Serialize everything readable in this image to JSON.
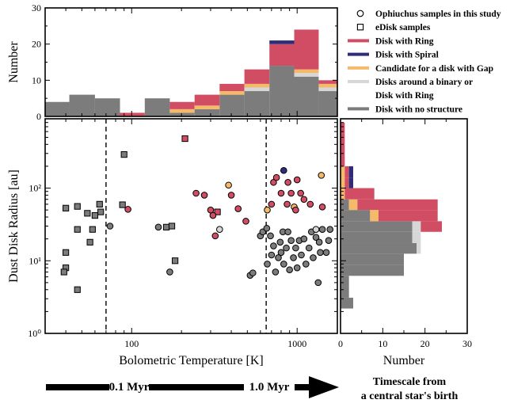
{
  "chart_data": [
    {
      "id": "top_hist",
      "type": "histogram",
      "ylabel": "Number",
      "ylim": [
        0,
        30
      ],
      "yticks": [
        0,
        10,
        20,
        30
      ],
      "xscale": "log",
      "xlim": [
        30,
        1750
      ],
      "stacking_order": [
        "Disk with no structure",
        "Disks around a binary or Disk with Ring",
        "Candidate for a disk with Gap",
        "Disk with Ring",
        "Disk with Spiral"
      ],
      "bins": [
        {
          "x0": 30,
          "x1": 42,
          "counts": [
            4,
            0,
            0,
            0,
            0
          ]
        },
        {
          "x0": 42,
          "x1": 60,
          "counts": [
            6,
            0,
            0,
            0,
            0
          ]
        },
        {
          "x0": 60,
          "x1": 85,
          "counts": [
            5,
            0,
            0,
            0,
            0
          ]
        },
        {
          "x0": 85,
          "x1": 120,
          "counts": [
            0,
            0,
            0,
            1,
            0
          ]
        },
        {
          "x0": 120,
          "x1": 170,
          "counts": [
            5,
            0,
            0,
            0,
            0
          ]
        },
        {
          "x0": 170,
          "x1": 240,
          "counts": [
            1,
            0,
            1,
            2,
            0
          ]
        },
        {
          "x0": 240,
          "x1": 340,
          "counts": [
            2,
            0,
            1,
            3,
            0
          ]
        },
        {
          "x0": 340,
          "x1": 480,
          "counts": [
            6,
            0,
            1,
            2,
            0
          ]
        },
        {
          "x0": 480,
          "x1": 680,
          "counts": [
            7,
            1,
            1,
            4,
            0
          ]
        },
        {
          "x0": 680,
          "x1": 960,
          "counts": [
            14,
            0,
            0,
            6,
            1
          ]
        },
        {
          "x0": 960,
          "x1": 1350,
          "counts": [
            11,
            1,
            1,
            11,
            0
          ]
        },
        {
          "x0": 1350,
          "x1": 1750,
          "counts": [
            7,
            1,
            1,
            1,
            0
          ]
        }
      ]
    },
    {
      "id": "scatter",
      "type": "scatter",
      "xlabel": "Bolometric Temperature [K]",
      "ylabel": "Dust Disk Radius [au]",
      "xscale": "log",
      "yscale": "log",
      "xlim": [
        30,
        1750
      ],
      "ylim": [
        1,
        900
      ],
      "xticks": [
        {
          "v": 100,
          "label": "100"
        },
        {
          "v": 1000,
          "label": "1000"
        }
      ],
      "yticks": [
        {
          "v": 1,
          "label": "10⁰"
        },
        {
          "v": 10,
          "label": "10¹"
        },
        {
          "v": 100,
          "label": "10²"
        }
      ],
      "vlines": [
        70,
        650
      ],
      "points": [
        {
          "x": 90,
          "y": 290,
          "m": "square",
          "c": "grey"
        },
        {
          "x": 210,
          "y": 480,
          "m": "square",
          "c": "ring"
        },
        {
          "x": 40,
          "y": 53,
          "m": "square",
          "c": "grey"
        },
        {
          "x": 47,
          "y": 56,
          "m": "square",
          "c": "grey"
        },
        {
          "x": 54,
          "y": 45,
          "m": "square",
          "c": "grey"
        },
        {
          "x": 60,
          "y": 42,
          "m": "square",
          "c": "grey"
        },
        {
          "x": 64,
          "y": 60,
          "m": "square",
          "c": "grey"
        },
        {
          "x": 65,
          "y": 47,
          "m": "square",
          "c": "grey"
        },
        {
          "x": 47,
          "y": 27,
          "m": "square",
          "c": "grey"
        },
        {
          "x": 58,
          "y": 27,
          "m": "square",
          "c": "grey"
        },
        {
          "x": 56,
          "y": 18,
          "m": "square",
          "c": "grey"
        },
        {
          "x": 88,
          "y": 59,
          "m": "square",
          "c": "grey"
        },
        {
          "x": 40,
          "y": 13,
          "m": "square",
          "c": "grey"
        },
        {
          "x": 40,
          "y": 8,
          "m": "square",
          "c": "grey"
        },
        {
          "x": 39,
          "y": 7,
          "m": "square",
          "c": "grey"
        },
        {
          "x": 47,
          "y": 4,
          "m": "square",
          "c": "grey"
        },
        {
          "x": 162,
          "y": 29,
          "m": "square",
          "c": "grey"
        },
        {
          "x": 175,
          "y": 30,
          "m": "square",
          "c": "grey"
        },
        {
          "x": 183,
          "y": 10,
          "m": "square",
          "c": "grey"
        },
        {
          "x": 330,
          "y": 47,
          "m": "square",
          "c": "ring"
        },
        {
          "x": 74,
          "y": 30,
          "m": "circle",
          "c": "grey"
        },
        {
          "x": 95,
          "y": 51,
          "m": "circle",
          "c": "ring"
        },
        {
          "x": 145,
          "y": 29,
          "m": "circle",
          "c": "grey"
        },
        {
          "x": 170,
          "y": 7,
          "m": "circle",
          "c": "grey"
        },
        {
          "x": 245,
          "y": 85,
          "m": "circle",
          "c": "ring"
        },
        {
          "x": 275,
          "y": 80,
          "m": "circle",
          "c": "ring"
        },
        {
          "x": 300,
          "y": 50,
          "m": "circle",
          "c": "ring"
        },
        {
          "x": 310,
          "y": 42,
          "m": "circle",
          "c": "ring"
        },
        {
          "x": 320,
          "y": 22,
          "m": "circle",
          "c": "ring"
        },
        {
          "x": 340,
          "y": 27,
          "m": "circle",
          "c": "binary"
        },
        {
          "x": 385,
          "y": 110,
          "m": "circle",
          "c": "gap"
        },
        {
          "x": 400,
          "y": 80,
          "m": "circle",
          "c": "ring"
        },
        {
          "x": 440,
          "y": 52,
          "m": "circle",
          "c": "ring"
        },
        {
          "x": 490,
          "y": 35,
          "m": "circle",
          "c": "ring"
        },
        {
          "x": 520,
          "y": 6.3,
          "m": "circle",
          "c": "grey"
        },
        {
          "x": 540,
          "y": 6.8,
          "m": "circle",
          "c": "grey"
        },
        {
          "x": 600,
          "y": 22,
          "m": "circle",
          "c": "grey"
        },
        {
          "x": 620,
          "y": 25,
          "m": "circle",
          "c": "grey"
        },
        {
          "x": 660,
          "y": 50,
          "m": "circle",
          "c": "gap"
        },
        {
          "x": 655,
          "y": 28,
          "m": "circle",
          "c": "grey"
        },
        {
          "x": 690,
          "y": 22,
          "m": "circle",
          "c": "grey"
        },
        {
          "x": 700,
          "y": 60,
          "m": "circle",
          "c": "ring"
        },
        {
          "x": 720,
          "y": 120,
          "m": "circle",
          "c": "ring"
        },
        {
          "x": 750,
          "y": 140,
          "m": "circle",
          "c": "ring"
        },
        {
          "x": 790,
          "y": 18,
          "m": "circle",
          "c": "grey"
        },
        {
          "x": 800,
          "y": 85,
          "m": "circle",
          "c": "ring"
        },
        {
          "x": 820,
          "y": 25,
          "m": "circle",
          "c": "grey"
        },
        {
          "x": 830,
          "y": 175,
          "m": "circle",
          "c": "spiral"
        },
        {
          "x": 870,
          "y": 60,
          "m": "circle",
          "c": "ring"
        },
        {
          "x": 880,
          "y": 120,
          "m": "circle",
          "c": "ring"
        },
        {
          "x": 920,
          "y": 85,
          "m": "circle",
          "c": "ring"
        },
        {
          "x": 960,
          "y": 55,
          "m": "circle",
          "c": "gap"
        },
        {
          "x": 980,
          "y": 50,
          "m": "circle",
          "c": "ring"
        },
        {
          "x": 1000,
          "y": 130,
          "m": "circle",
          "c": "ring"
        },
        {
          "x": 1050,
          "y": 85,
          "m": "circle",
          "c": "ring"
        },
        {
          "x": 1100,
          "y": 70,
          "m": "circle",
          "c": "ring"
        },
        {
          "x": 1200,
          "y": 60,
          "m": "circle",
          "c": "ring"
        },
        {
          "x": 1400,
          "y": 150,
          "m": "circle",
          "c": "gap"
        },
        {
          "x": 1420,
          "y": 55,
          "m": "circle",
          "c": "ring"
        },
        {
          "x": 660,
          "y": 9,
          "m": "circle",
          "c": "grey"
        },
        {
          "x": 700,
          "y": 12,
          "m": "circle",
          "c": "grey"
        },
        {
          "x": 720,
          "y": 16,
          "m": "circle",
          "c": "grey"
        },
        {
          "x": 740,
          "y": 7,
          "m": "circle",
          "c": "grey"
        },
        {
          "x": 770,
          "y": 11,
          "m": "circle",
          "c": "grey"
        },
        {
          "x": 800,
          "y": 13,
          "m": "circle",
          "c": "grey"
        },
        {
          "x": 830,
          "y": 9,
          "m": "circle",
          "c": "grey"
        },
        {
          "x": 860,
          "y": 15,
          "m": "circle",
          "c": "grey"
        },
        {
          "x": 880,
          "y": 25,
          "m": "circle",
          "c": "grey"
        },
        {
          "x": 900,
          "y": 7.5,
          "m": "circle",
          "c": "grey"
        },
        {
          "x": 920,
          "y": 19,
          "m": "circle",
          "c": "grey"
        },
        {
          "x": 950,
          "y": 11,
          "m": "circle",
          "c": "grey"
        },
        {
          "x": 980,
          "y": 15,
          "m": "circle",
          "c": "grey"
        },
        {
          "x": 1000,
          "y": 8,
          "m": "circle",
          "c": "grey"
        },
        {
          "x": 1030,
          "y": 19,
          "m": "circle",
          "c": "grey"
        },
        {
          "x": 1060,
          "y": 12,
          "m": "circle",
          "c": "grey"
        },
        {
          "x": 1100,
          "y": 20,
          "m": "circle",
          "c": "grey"
        },
        {
          "x": 1130,
          "y": 9,
          "m": "circle",
          "c": "grey"
        },
        {
          "x": 1180,
          "y": 15,
          "m": "circle",
          "c": "grey"
        },
        {
          "x": 1220,
          "y": 25,
          "m": "circle",
          "c": "grey"
        },
        {
          "x": 1250,
          "y": 11,
          "m": "circle",
          "c": "grey"
        },
        {
          "x": 1300,
          "y": 21,
          "m": "circle",
          "c": "grey"
        },
        {
          "x": 1340,
          "y": 5,
          "m": "circle",
          "c": "grey"
        },
        {
          "x": 1360,
          "y": 18,
          "m": "circle",
          "c": "grey"
        },
        {
          "x": 1380,
          "y": 13,
          "m": "circle",
          "c": "grey"
        },
        {
          "x": 1420,
          "y": 27,
          "m": "circle",
          "c": "grey"
        },
        {
          "x": 1500,
          "y": 13,
          "m": "circle",
          "c": "grey"
        },
        {
          "x": 1550,
          "y": 19,
          "m": "circle",
          "c": "grey"
        },
        {
          "x": 1580,
          "y": 27,
          "m": "circle",
          "c": "grey"
        },
        {
          "x": 1300,
          "y": 27,
          "m": "circle",
          "c": "binary"
        }
      ]
    },
    {
      "id": "right_hist",
      "type": "histogram_horizontal",
      "xlabel": "Number",
      "xlim": [
        0,
        30
      ],
      "xticks": [
        0,
        10,
        20,
        30
      ],
      "ylim": [
        1,
        900
      ],
      "stacking_order": [
        "Disk with no structure",
        "Disks around a binary or Disk with Ring",
        "Candidate for a disk with Gap",
        "Disk with Ring",
        "Disk with Spiral"
      ],
      "bins": [
        {
          "y0": 2.2,
          "y1": 3.1,
          "counts": [
            3,
            0,
            0,
            0,
            0
          ]
        },
        {
          "y0": 3.1,
          "y1": 4.4,
          "counts": [
            2,
            0,
            0,
            0,
            0
          ]
        },
        {
          "y0": 4.4,
          "y1": 6.2,
          "counts": [
            2,
            0,
            0,
            0,
            0
          ]
        },
        {
          "y0": 6.2,
          "y1": 8.8,
          "counts": [
            15,
            0,
            0,
            0,
            0
          ]
        },
        {
          "y0": 8.8,
          "y1": 12.5,
          "counts": [
            15,
            0,
            0,
            0,
            0
          ]
        },
        {
          "y0": 12.5,
          "y1": 17.5,
          "counts": [
            18,
            1,
            0,
            0,
            0
          ]
        },
        {
          "y0": 17.5,
          "y1": 25,
          "counts": [
            17,
            2,
            0,
            0,
            0
          ]
        },
        {
          "y0": 25,
          "y1": 35,
          "counts": [
            17,
            2,
            0,
            5,
            0
          ]
        },
        {
          "y0": 35,
          "y1": 50,
          "counts": [
            7,
            0,
            2,
            14,
            0
          ]
        },
        {
          "y0": 50,
          "y1": 70,
          "counts": [
            2,
            0,
            2,
            19,
            0
          ]
        },
        {
          "y0": 70,
          "y1": 100,
          "counts": [
            0,
            0,
            1,
            7,
            0
          ]
        },
        {
          "y0": 100,
          "y1": 140,
          "counts": [
            0,
            0,
            1,
            1,
            1
          ]
        },
        {
          "y0": 140,
          "y1": 200,
          "counts": [
            0,
            0,
            1,
            1,
            1
          ]
        },
        {
          "y0": 200,
          "y1": 280,
          "counts": [
            0,
            0,
            0,
            1,
            0
          ]
        },
        {
          "y0": 280,
          "y1": 400,
          "counts": [
            0,
            0,
            0,
            1,
            0
          ]
        },
        {
          "y0": 400,
          "y1": 560,
          "counts": [
            0,
            0,
            0,
            1,
            0
          ]
        },
        {
          "y0": 560,
          "y1": 800,
          "counts": [
            0,
            0,
            0,
            1,
            0
          ]
        }
      ]
    }
  ],
  "colors": {
    "grey": "#7c7c7c",
    "binary": "#d7d7d7",
    "gap": "#f4b969",
    "ring": "#d14d64",
    "spiral": "#2f2c7a"
  },
  "legend": {
    "items": [
      {
        "label": "Ophiuchus samples in this study",
        "kind": "circle"
      },
      {
        "label": "eDisk samples",
        "kind": "square"
      },
      {
        "label": "Disk with Ring",
        "kind": "line",
        "color": "ring"
      },
      {
        "label": "Disk with Spiral",
        "kind": "line",
        "color": "spiral"
      },
      {
        "label": "Candidate for a disk with Gap",
        "kind": "line",
        "color": "gap"
      },
      {
        "label": "Disks around a binary or",
        "kind": "line",
        "color": "binary"
      },
      {
        "label": "Disk with Ring",
        "kind": "text"
      },
      {
        "label": "Disk with no structure",
        "kind": "line",
        "color": "grey"
      }
    ]
  },
  "timeline": {
    "label1": "0.1 Myr",
    "label2": "1.0 Myr",
    "caption_line1": "Timescale from",
    "caption_line2": "a central star's birth"
  }
}
